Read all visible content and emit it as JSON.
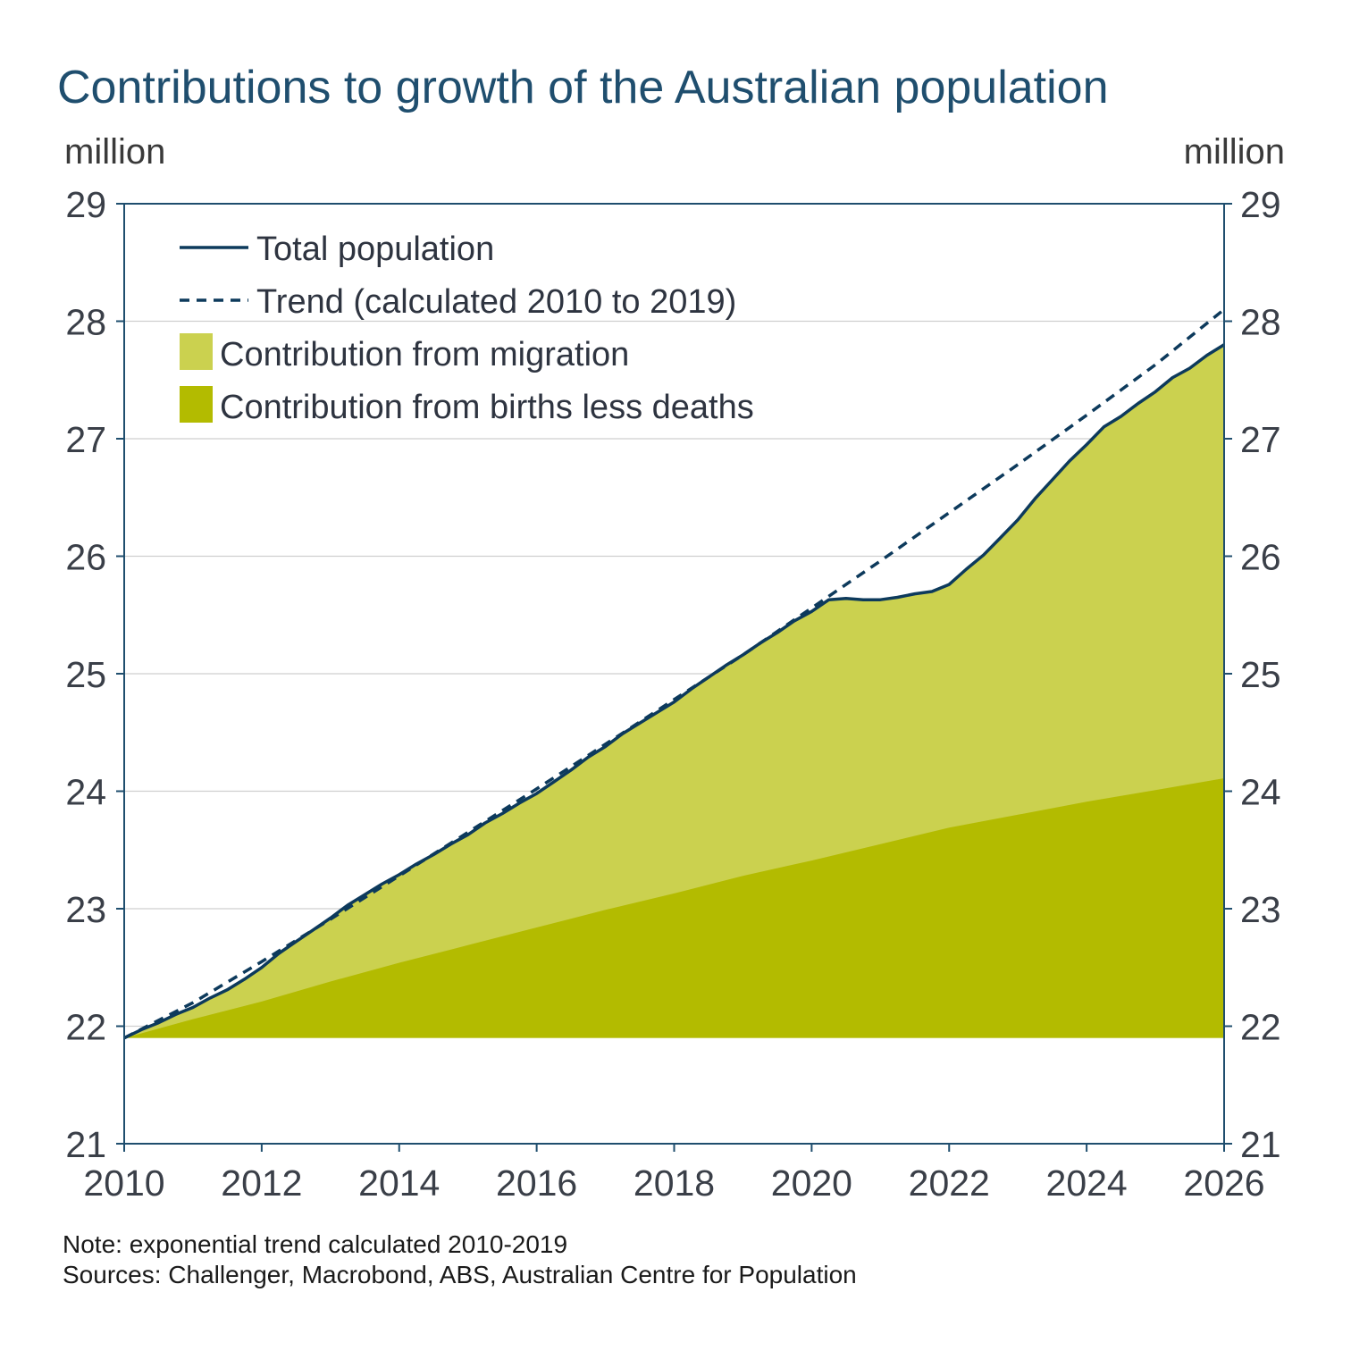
{
  "title": "Contributions to growth of the Australian population",
  "left_unit": "million",
  "right_unit": "million",
  "note": "Note: exponential trend calculated 2010-2019",
  "sources": "Sources: Challenger, Macrobond, ABS, Australian Centre for Population",
  "colors": {
    "total": "#0d3a5c",
    "trend": "#0d3a5c",
    "migration": "#cbd14f",
    "births": "#b3bb00",
    "grid": "#cfcfcf",
    "axis": "#1f4e6e"
  },
  "chart_data": {
    "type": "area",
    "title": "Contributions to growth of the Australian population",
    "ylabel": "million",
    "xlim": [
      2010,
      2026
    ],
    "ylim": [
      21,
      29
    ],
    "xticks": [
      2010,
      2012,
      2014,
      2016,
      2018,
      2020,
      2022,
      2024,
      2026
    ],
    "yticks": [
      21,
      22,
      23,
      24,
      25,
      26,
      27,
      28,
      29
    ],
    "grid": true,
    "legend_position": "top-left",
    "baseline": 21.9,
    "legend": [
      {
        "key": "total",
        "label": "Total population",
        "style": "line"
      },
      {
        "key": "trend",
        "label": "Trend (calculated 2010 to 2019)",
        "style": "dashed"
      },
      {
        "key": "migration",
        "label": "Contribution from migration",
        "style": "fill"
      },
      {
        "key": "births",
        "label": "Contribution from births less deaths",
        "style": "fill"
      }
    ],
    "series": [
      {
        "name": "Total population",
        "x": [
          2010.0,
          2010.25,
          2010.5,
          2010.75,
          2011.0,
          2011.25,
          2011.5,
          2011.75,
          2012.0,
          2012.25,
          2012.5,
          2012.75,
          2013.0,
          2013.25,
          2013.5,
          2013.75,
          2014.0,
          2014.25,
          2014.5,
          2014.75,
          2015.0,
          2015.25,
          2015.5,
          2015.75,
          2016.0,
          2016.25,
          2016.5,
          2016.75,
          2017.0,
          2017.25,
          2017.5,
          2017.75,
          2018.0,
          2018.25,
          2018.5,
          2018.75,
          2019.0,
          2019.25,
          2019.5,
          2019.75,
          2020.0,
          2020.25,
          2020.5,
          2020.75,
          2021.0,
          2021.25,
          2021.5,
          2021.75,
          2022.0,
          2022.25,
          2022.5,
          2022.75,
          2023.0,
          2023.25,
          2023.5,
          2023.75,
          2024.0,
          2024.25,
          2024.5,
          2024.75,
          2025.0,
          2025.25,
          2025.5,
          2025.75,
          2026.0
        ],
        "values": [
          21.9,
          21.97,
          22.03,
          22.1,
          22.16,
          22.24,
          22.31,
          22.4,
          22.5,
          22.62,
          22.72,
          22.82,
          22.92,
          23.03,
          23.12,
          23.21,
          23.29,
          23.38,
          23.46,
          23.55,
          23.63,
          23.73,
          23.81,
          23.9,
          23.98,
          24.08,
          24.18,
          24.29,
          24.38,
          24.49,
          24.58,
          24.67,
          24.76,
          24.87,
          24.97,
          25.07,
          25.16,
          25.26,
          25.35,
          25.45,
          25.53,
          25.63,
          25.64,
          25.63,
          25.63,
          25.65,
          25.68,
          25.7,
          25.76,
          25.89,
          26.01,
          26.16,
          26.31,
          26.49,
          26.65,
          26.81,
          26.95,
          27.1,
          27.19,
          27.3,
          27.4,
          27.52,
          27.6,
          27.71,
          27.8
        ]
      },
      {
        "name": "Trend (calculated 2010 to 2019)",
        "x": [
          2010,
          2011,
          2012,
          2013,
          2014,
          2015,
          2016,
          2017,
          2018,
          2019,
          2020,
          2021,
          2022,
          2023,
          2024,
          2025,
          2026
        ],
        "values": [
          21.9,
          22.2,
          22.55,
          22.91,
          23.28,
          23.65,
          24.02,
          24.4,
          24.78,
          25.16,
          25.56,
          25.96,
          26.37,
          26.78,
          27.2,
          27.63,
          28.1
        ]
      },
      {
        "name": "Contribution from births less deaths",
        "x": [
          2010,
          2011,
          2012,
          2013,
          2014,
          2015,
          2016,
          2017,
          2018,
          2019,
          2020,
          2021,
          2022,
          2023,
          2024,
          2025,
          2026
        ],
        "values": [
          21.9,
          22.06,
          22.21,
          22.38,
          22.54,
          22.69,
          22.84,
          22.99,
          23.13,
          23.28,
          23.41,
          23.55,
          23.69,
          23.8,
          23.91,
          24.01,
          24.11
        ]
      }
    ]
  }
}
